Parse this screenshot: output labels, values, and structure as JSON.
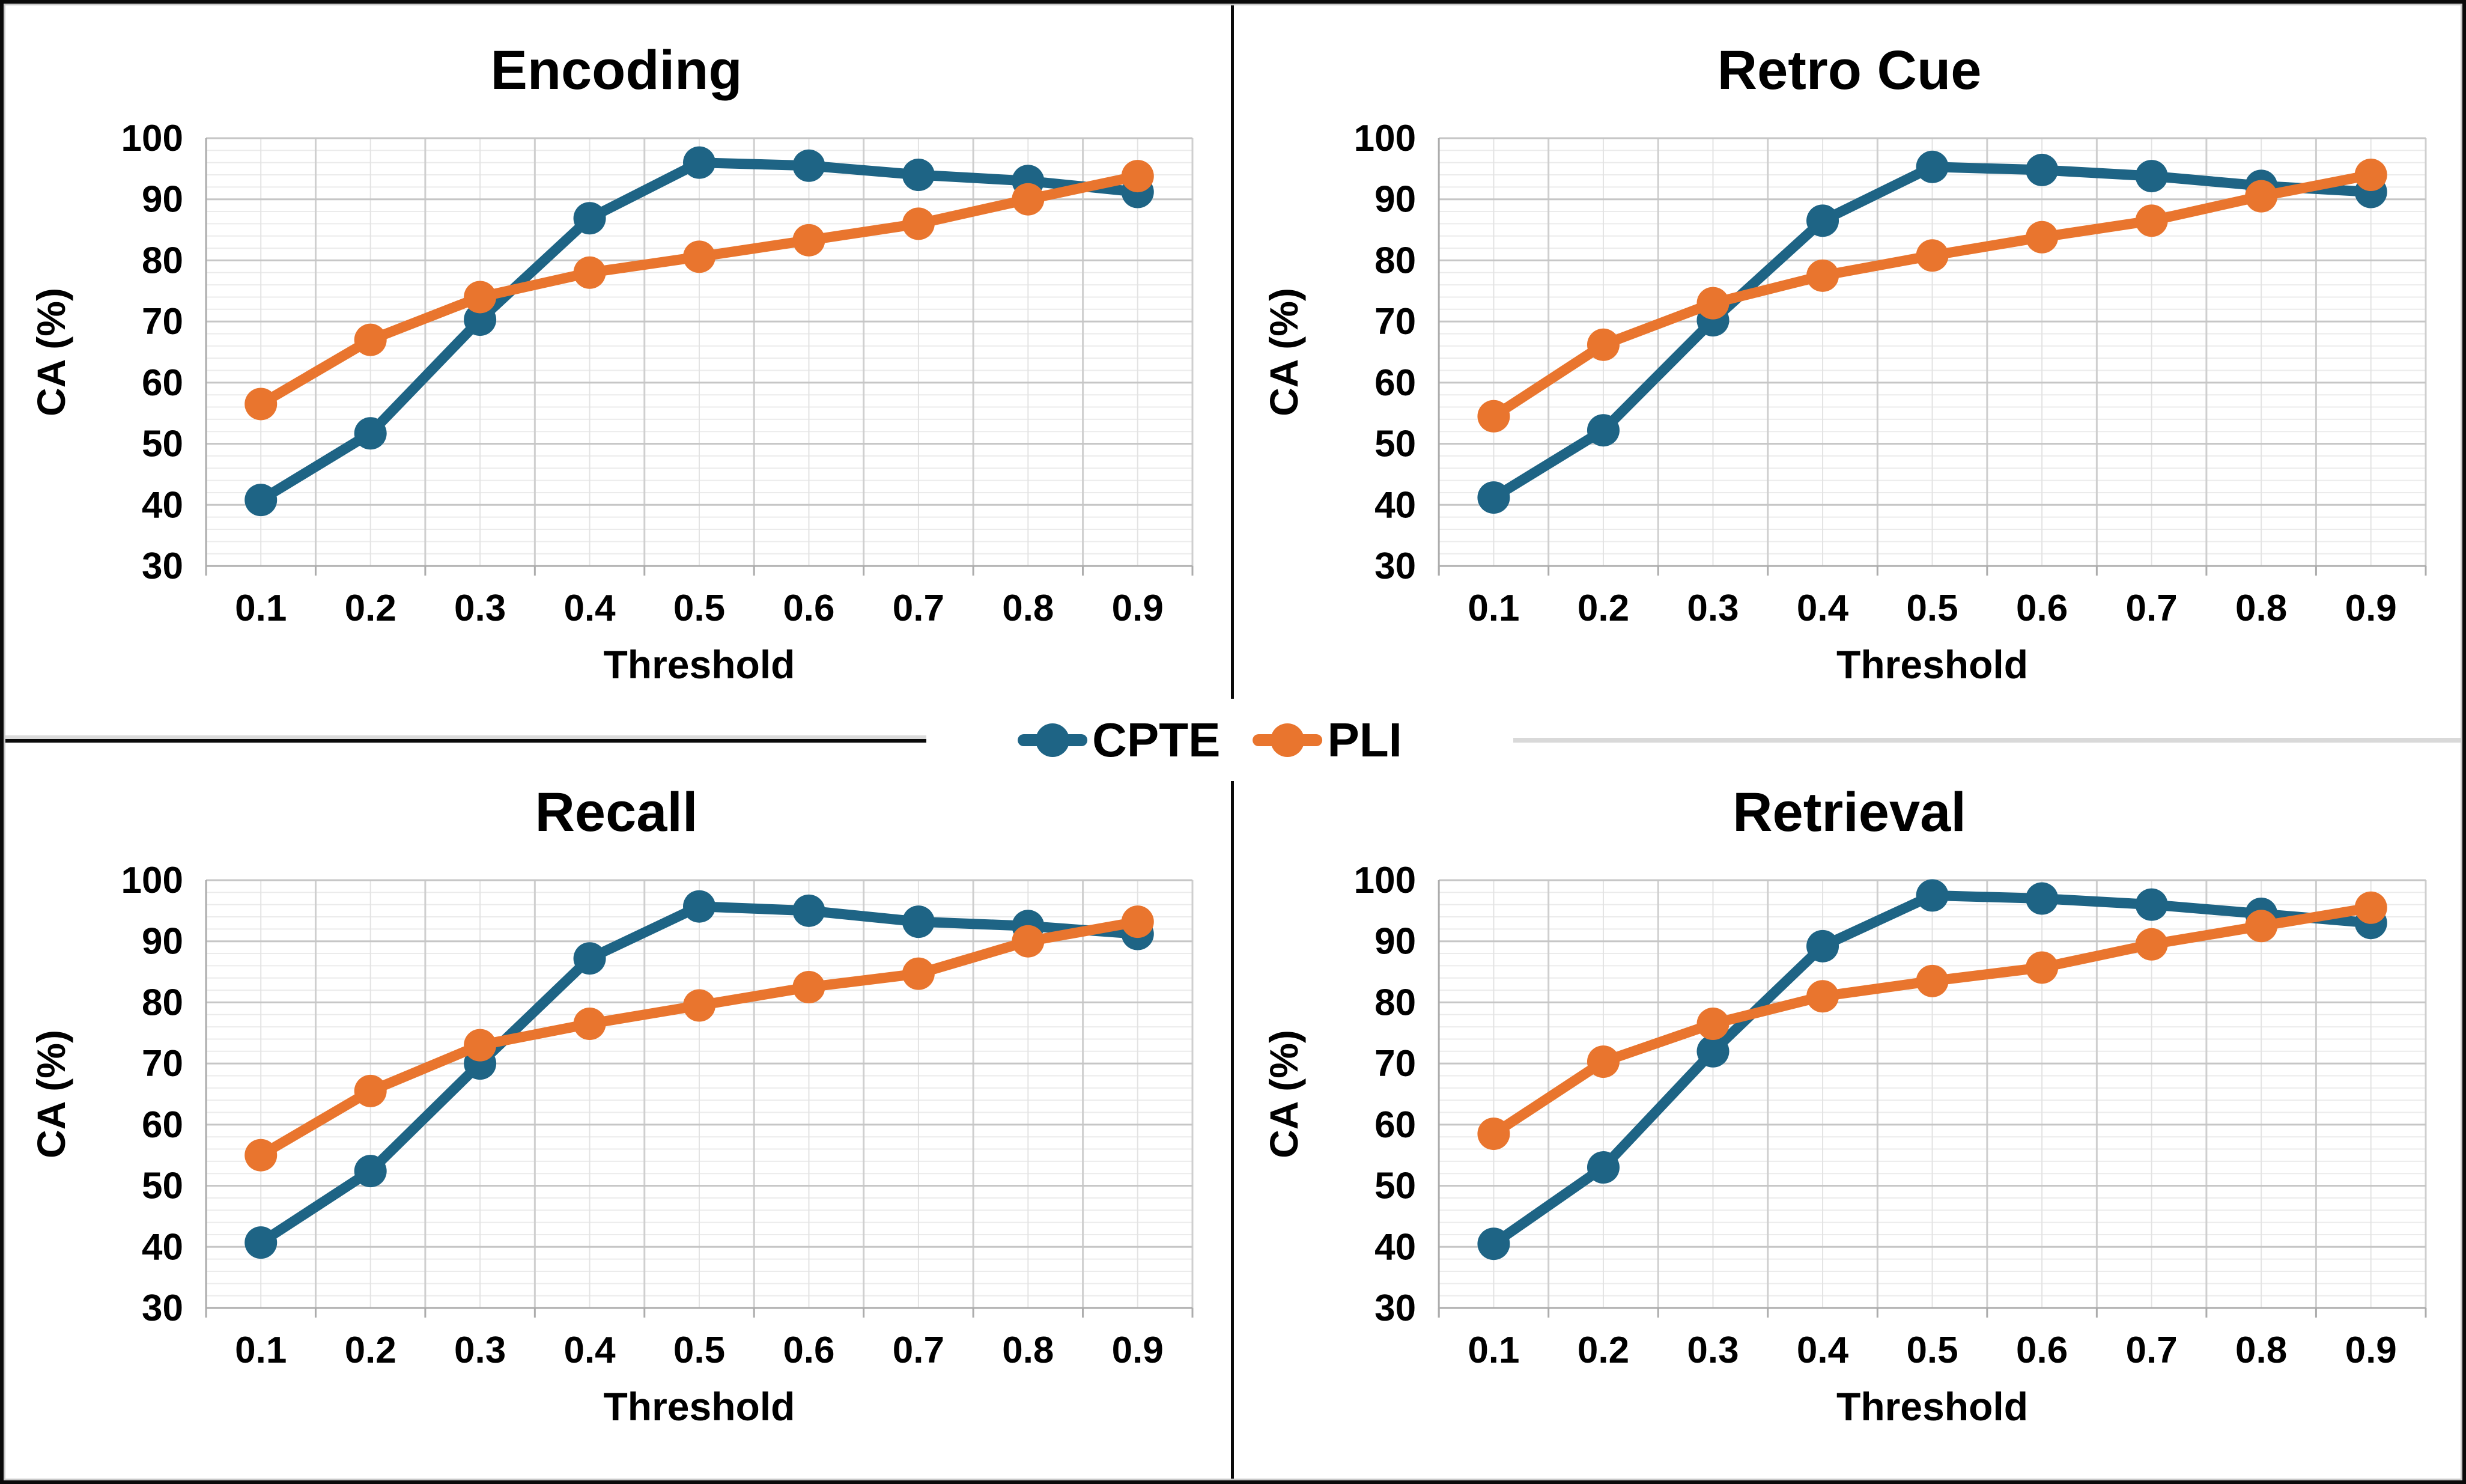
{
  "figure": {
    "description": "2x2 grid of line charts comparing CPTE vs PLI classification accuracy across thresholds",
    "background": "#FFFFFF",
    "border_color": "#0a0a0a"
  },
  "legend": {
    "position": "center-middle",
    "items": [
      {
        "label": "CPTE",
        "color": "#1E6485"
      },
      {
        "label": "PLI",
        "color": "#E9752E"
      }
    ]
  },
  "axes": {
    "x_title": "Threshold",
    "y_title": "CA (%)",
    "x_tick_labels": [
      "0.1",
      "0.2",
      "0.3",
      "0.4",
      "0.5",
      "0.6",
      "0.7",
      "0.8",
      "0.9"
    ],
    "y_tick_labels": [
      "30",
      "40",
      "50",
      "60",
      "70",
      "80",
      "90",
      "100"
    ],
    "y_min": 30,
    "y_max": 100,
    "y_major_step": 10,
    "y_minor_step": 2,
    "grid": true
  },
  "colors": {
    "cpte": "#1E6485",
    "pli": "#E9752E",
    "grid_major": "#C6C6C6",
    "grid_minor": "#EBEBEB",
    "grid_vert_major": "#CFCFCF",
    "grid_vert_minor": "#E3E3E3",
    "axis_line": "#ACACAC",
    "text": "#000000"
  },
  "chart_data": [
    {
      "type": "line",
      "title": "Encoding",
      "position": "top-left",
      "categories": [
        0.1,
        0.2,
        0.3,
        0.4,
        0.5,
        0.6,
        0.7,
        0.8,
        0.9
      ],
      "xlabel": "Threshold",
      "ylabel": "CA (%)",
      "ylim": [
        30,
        100
      ],
      "series": [
        {
          "name": "CPTE",
          "values": [
            40.8,
            51.7,
            70.3,
            86.9,
            96.0,
            95.5,
            94.0,
            93.0,
            91.2
          ]
        },
        {
          "name": "PLI",
          "values": [
            56.5,
            67.0,
            74.0,
            78.0,
            80.6,
            83.3,
            86.0,
            90.0,
            93.8
          ]
        }
      ]
    },
    {
      "type": "line",
      "title": "Retro Cue",
      "position": "top-right",
      "categories": [
        0.1,
        0.2,
        0.3,
        0.4,
        0.5,
        0.6,
        0.7,
        0.8,
        0.9
      ],
      "xlabel": "Threshold",
      "ylabel": "CA (%)",
      "ylim": [
        30,
        100
      ],
      "series": [
        {
          "name": "CPTE",
          "values": [
            41.2,
            52.2,
            70.2,
            86.5,
            95.3,
            94.8,
            93.8,
            92.2,
            91.2
          ]
        },
        {
          "name": "PLI",
          "values": [
            54.5,
            66.2,
            73.0,
            77.5,
            80.8,
            83.8,
            86.5,
            90.5,
            94.0
          ]
        }
      ]
    },
    {
      "type": "line",
      "title": "Recall",
      "position": "bottom-left",
      "categories": [
        0.1,
        0.2,
        0.3,
        0.4,
        0.5,
        0.6,
        0.7,
        0.8,
        0.9
      ],
      "xlabel": "Threshold",
      "ylabel": "CA (%)",
      "ylim": [
        30,
        100
      ],
      "series": [
        {
          "name": "CPTE",
          "values": [
            40.7,
            52.4,
            70.0,
            87.2,
            95.7,
            95.0,
            93.2,
            92.5,
            91.2
          ]
        },
        {
          "name": "PLI",
          "values": [
            55.0,
            65.5,
            73.0,
            76.5,
            79.5,
            82.5,
            84.7,
            90.0,
            93.2
          ]
        }
      ]
    },
    {
      "type": "line",
      "title": "Retrieval",
      "position": "bottom-right",
      "categories": [
        0.1,
        0.2,
        0.3,
        0.4,
        0.5,
        0.6,
        0.7,
        0.8,
        0.9
      ],
      "xlabel": "Threshold",
      "ylabel": "CA (%)",
      "ylim": [
        30,
        100
      ],
      "series": [
        {
          "name": "CPTE",
          "values": [
            40.5,
            53.0,
            72.0,
            89.2,
            97.5,
            97.0,
            96.0,
            94.5,
            93.0
          ]
        },
        {
          "name": "PLI",
          "values": [
            58.5,
            70.3,
            76.5,
            81.0,
            83.5,
            85.7,
            89.5,
            92.5,
            95.5
          ]
        }
      ]
    }
  ]
}
